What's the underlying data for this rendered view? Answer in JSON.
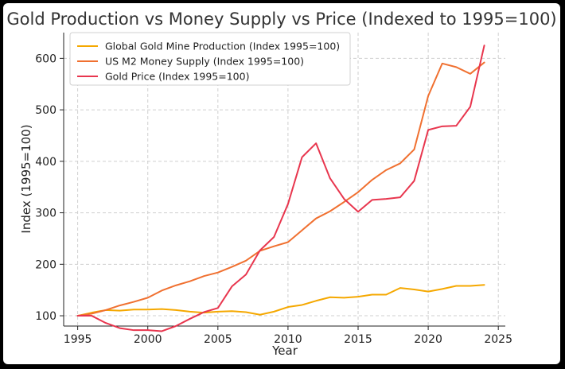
{
  "chart_data": {
    "type": "line",
    "title": "Gold Production vs Money Supply vs Price (Indexed to 1995=100)",
    "xlabel": "Year",
    "ylabel": "Index (1995=100)",
    "xlim": [
      1994,
      2025.5
    ],
    "ylim": [
      80,
      650
    ],
    "xticks": [
      1995,
      2000,
      2005,
      2010,
      2015,
      2020,
      2025
    ],
    "yticks": [
      100,
      200,
      300,
      400,
      500,
      600
    ],
    "grid": true,
    "legend_position": "top-left",
    "x": [
      1995,
      1996,
      1997,
      1998,
      1999,
      2000,
      2001,
      2002,
      2003,
      2004,
      2005,
      2006,
      2007,
      2008,
      2009,
      2010,
      2011,
      2012,
      2013,
      2014,
      2015,
      2016,
      2017,
      2018,
      2019,
      2020,
      2021,
      2022,
      2023,
      2024
    ],
    "series": [
      {
        "name": "Global Gold Mine Production (Index 1995=100)",
        "color": "#f5a800",
        "values": [
          100,
          106,
          111,
          110,
          112,
          112,
          113,
          111,
          108,
          106,
          108,
          109,
          107,
          102,
          108,
          117,
          121,
          129,
          136,
          135,
          137,
          141,
          141,
          154,
          151,
          147,
          152,
          158,
          158,
          160
        ]
      },
      {
        "name": "US M2 Money Supply (Index 1995=100)",
        "color": "#f07030",
        "values": [
          100,
          104,
          111,
          120,
          127,
          135,
          149,
          159,
          167,
          177,
          184,
          195,
          207,
          226,
          235,
          243,
          266,
          289,
          303,
          321,
          340,
          364,
          383,
          396,
          423,
          527,
          590,
          583,
          570,
          592
        ]
      },
      {
        "name": "Gold Price (Index 1995=100)",
        "color": "#e8364e",
        "values": [
          100,
          100,
          86,
          76,
          72,
          72,
          70,
          80,
          94,
          107,
          115,
          157,
          180,
          227,
          253,
          317,
          408,
          435,
          367,
          327,
          302,
          325,
          327,
          330,
          362,
          461,
          468,
          469,
          506,
          625
        ]
      }
    ]
  }
}
